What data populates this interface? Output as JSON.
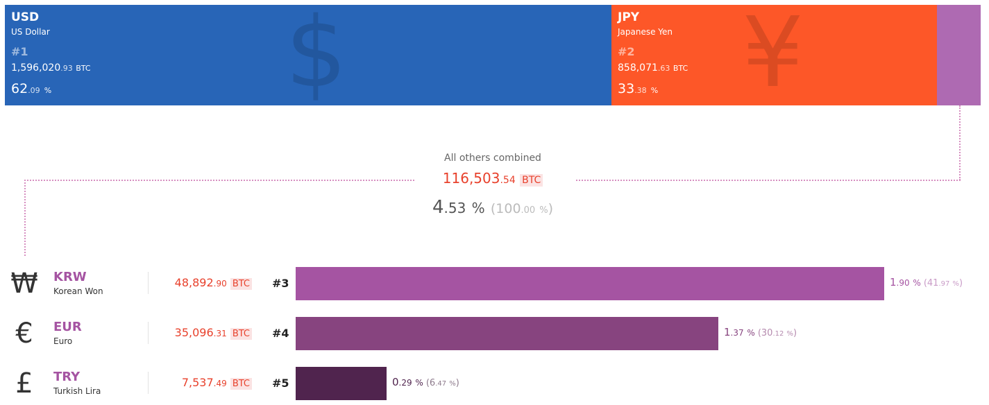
{
  "chart_data": {
    "type": "bar",
    "unit": "BTC",
    "top_currencies": [
      {
        "code": "USD",
        "name": "US Dollar",
        "symbol": "$",
        "rank": "#1",
        "btc_int": "1,596,020",
        "btc_dec": ".93",
        "pct_int": "62",
        "pct_dec": ".09",
        "value": 1596020.93,
        "percent": 62.09,
        "color": "#2865b7"
      },
      {
        "code": "JPY",
        "name": "Japanese Yen",
        "symbol": "¥",
        "rank": "#2",
        "btc_int": "858,071",
        "btc_dec": ".63",
        "pct_int": "33",
        "pct_dec": ".38",
        "value": 858071.63,
        "percent": 33.38,
        "color": "#fd5728"
      }
    ],
    "others": {
      "title": "All others combined",
      "btc_int": "116,503",
      "btc_dec": ".54",
      "pct_int": "4",
      "pct_dec": ".53",
      "rel_int": "100",
      "rel_dec": ".00",
      "value": 116503.54,
      "percent": 4.53,
      "color": "#ae6ab2"
    },
    "other_currencies": [
      {
        "code": "KRW",
        "name": "Korean Won",
        "symbol": "₩",
        "rank": "#3",
        "btc_int": "48,892",
        "btc_dec": ".90",
        "pct_int": "1",
        "pct_dec": ".90",
        "rel_int": "41",
        "rel_dec": ".97",
        "value": 48892.9,
        "percent": 1.9,
        "relative_percent": 41.97,
        "color": "#a554a2",
        "text_color": "#a554a2",
        "rel_color": "#c99bc7"
      },
      {
        "code": "EUR",
        "name": "Euro",
        "symbol": "€",
        "rank": "#4",
        "btc_int": "35,096",
        "btc_dec": ".31",
        "pct_int": "1",
        "pct_dec": ".37",
        "rel_int": "30",
        "rel_dec": ".12",
        "value": 35096.31,
        "percent": 1.37,
        "relative_percent": 30.12,
        "color": "#87447f",
        "text_color": "#87447f",
        "rel_color": "#b58aae"
      },
      {
        "code": "TRY",
        "name": "Turkish Lira",
        "symbol": "£",
        "rank": "#5",
        "btc_int": "7,537",
        "btc_dec": ".49",
        "pct_int": "0",
        "pct_dec": ".29",
        "rel_int": "6",
        "rel_dec": ".47",
        "value": 7537.49,
        "percent": 0.29,
        "relative_percent": 6.47,
        "color": "#50244e",
        "text_color": "#50244e",
        "rel_color": "#8d7a8c"
      }
    ],
    "btc_label": "BTC",
    "pct_sign": "%"
  }
}
